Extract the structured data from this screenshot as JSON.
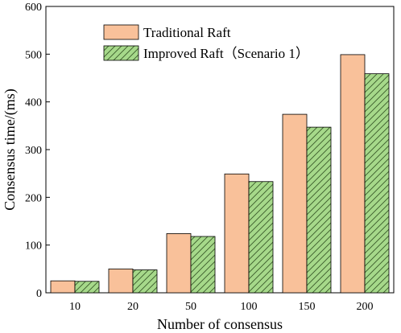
{
  "chart_data": {
    "type": "bar",
    "xlabel": "Number of consensus",
    "ylabel": "Consensus time/(ms)",
    "categories": [
      "10",
      "20",
      "50",
      "100",
      "150",
      "200"
    ],
    "ylim": [
      0,
      600
    ],
    "yticks": [
      0,
      100,
      200,
      300,
      400,
      500,
      600
    ],
    "legend_position": "top-left",
    "series": [
      {
        "name": "Traditional Raft",
        "values": [
          25,
          50,
          124,
          249,
          374,
          499
        ],
        "color": "#f9c19a",
        "pattern": "solid"
      },
      {
        "name": "Improved Raft（Scenario 1）",
        "values": [
          24,
          48,
          118,
          233,
          347,
          459
        ],
        "color": "#a6d98a",
        "pattern": "diagonal-hatch"
      }
    ]
  }
}
